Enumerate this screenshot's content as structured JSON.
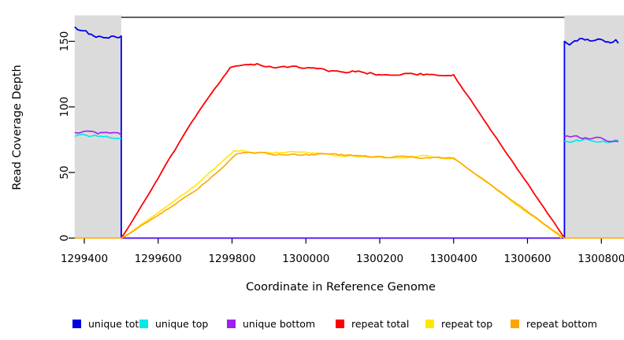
{
  "chart_data": {
    "type": "line",
    "title": "",
    "xlabel": "Coordinate in Reference Genome",
    "ylabel": "Read Coverage Depth",
    "xlim": [
      1299374,
      1300862
    ],
    "ylim": [
      0,
      168
    ],
    "x_ticks": [
      1299400,
      1299600,
      1299800,
      1300000,
      1300200,
      1300400,
      1300600,
      1300800
    ],
    "y_ticks": [
      0,
      50,
      100,
      150
    ],
    "grid": false,
    "legend_position": "bottom",
    "shaded_regions": [
      {
        "name": "left-flank",
        "x0": 1299374,
        "x1": 1299500,
        "color": "#DBDBDB"
      },
      {
        "name": "right-flank",
        "x0": 1300700,
        "x1": 1300862,
        "color": "#DBDBDB"
      }
    ],
    "top_border": {
      "x0": 1299500,
      "x1": 1300700,
      "color": "#000000"
    },
    "series": [
      {
        "name": "unique total",
        "color": "#0000EE",
        "lw": 1.8,
        "paths": [
          {
            "segments": [
              {
                "x0": 1299374,
                "y0": 161,
                "x1": 1299412,
                "y1": 155.5,
                "amp": 1.5,
                "step": 7
              },
              {
                "x0": 1299412,
                "y0": 155.5,
                "x1": 1299500,
                "y1": 154,
                "amp": 2.1,
                "step": 7
              },
              {
                "x0": 1299500,
                "y0": 154,
                "x1": 1299500,
                "y1": 0,
                "amp": 0
              },
              {
                "x0": 1299500,
                "y0": 0,
                "x1": 1300700,
                "y1": 0,
                "amp": 0
              },
              {
                "x0": 1300700,
                "y0": 0,
                "x1": 1300700,
                "y1": 150,
                "amp": 0
              },
              {
                "x0": 1300700,
                "y0": 150,
                "x1": 1300846,
                "y1": 148.5,
                "amp": 2.6,
                "step": 7
              }
            ]
          }
        ]
      },
      {
        "name": "unique top",
        "color": "#00E8E8",
        "lw": 1.6,
        "paths": [
          {
            "segments": [
              {
                "x0": 1299374,
                "y0": 77.5,
                "x1": 1299500,
                "y1": 76,
                "amp": 1.6,
                "step": 8
              }
            ]
          },
          {
            "segments": [
              {
                "x0": 1300700,
                "y0": 74,
                "x1": 1300846,
                "y1": 74.5,
                "amp": 1.6,
                "step": 8
              }
            ]
          }
        ]
      },
      {
        "name": "unique bottom",
        "color": "#A020F0",
        "lw": 1.6,
        "paths": [
          {
            "segments": [
              {
                "x0": 1299374,
                "y0": 80.5,
                "x1": 1299500,
                "y1": 78.5,
                "amp": 1.6,
                "step": 8
              }
            ]
          },
          {
            "op": 0.55,
            "segments": [
              {
                "x0": 1299500,
                "y0": 0,
                "x1": 1300700,
                "y1": 0,
                "amp": 0
              }
            ]
          },
          {
            "segments": [
              {
                "x0": 1300700,
                "y0": 77.5,
                "x1": 1300846,
                "y1": 73.5,
                "amp": 1.8,
                "step": 8
              }
            ]
          }
        ]
      },
      {
        "name": "repeat total",
        "color": "#FF0000",
        "lw": 1.8,
        "paths": [
          {
            "segments": [
              {
                "x0": 1299500,
                "y0": 0,
                "x1": 1299700,
                "y1": 92,
                "amp": 0.7,
                "step": 9
              },
              {
                "x0": 1299700,
                "y0": 92,
                "x1": 1299795,
                "y1": 130,
                "amp": 0.7,
                "step": 9
              },
              {
                "x0": 1299795,
                "y0": 130,
                "x1": 1299860,
                "y1": 132,
                "amp": 1,
                "step": 8
              },
              {
                "x0": 1299860,
                "y0": 132,
                "x1": 1299990,
                "y1": 129.5,
                "amp": 1.2,
                "step": 8
              },
              {
                "x0": 1299990,
                "y0": 129.5,
                "x1": 1300110,
                "y1": 126,
                "amp": 1.2,
                "step": 8
              },
              {
                "x0": 1300110,
                "y0": 126,
                "x1": 1300310,
                "y1": 125.5,
                "amp": 1.5,
                "step": 8
              },
              {
                "x0": 1300310,
                "y0": 125.5,
                "x1": 1300400,
                "y1": 124.5,
                "amp": 1,
                "step": 8
              },
              {
                "x0": 1300400,
                "y0": 124.5,
                "x1": 1300700,
                "y1": 0,
                "amp": 0.5,
                "step": 9
              }
            ]
          }
        ]
      },
      {
        "name": "repeat top",
        "color": "#FFE800",
        "lw": 1.6,
        "paths": [
          {
            "segments": [
              {
                "x0": 1299500,
                "y0": 0,
                "x1": 1299690,
                "y1": 38,
                "amp": 0.6,
                "step": 9
              },
              {
                "x0": 1299690,
                "y0": 38,
                "x1": 1299805,
                "y1": 66.5,
                "amp": 0.7,
                "step": 9
              },
              {
                "x0": 1299805,
                "y0": 66.5,
                "x1": 1299920,
                "y1": 65.5,
                "amp": 1,
                "step": 8
              },
              {
                "x0": 1299920,
                "y0": 65.5,
                "x1": 1300120,
                "y1": 63,
                "amp": 1,
                "step": 8
              },
              {
                "x0": 1300120,
                "y0": 63,
                "x1": 1300400,
                "y1": 61.5,
                "amp": 1.1,
                "step": 8
              },
              {
                "x0": 1300400,
                "y0": 61.5,
                "x1": 1300692,
                "y1": 0,
                "amp": 0.5,
                "step": 9
              }
            ]
          }
        ]
      },
      {
        "name": "repeat bottom",
        "color": "#FFA500",
        "lw": 1.6,
        "paths": [
          {
            "segments": [
              {
                "x0": 1299374,
                "y0": 0,
                "x1": 1299500,
                "y1": 0,
                "amp": 0
              },
              {
                "x0": 1299500,
                "y0": 0,
                "x1": 1299700,
                "y1": 36,
                "amp": 0.6,
                "step": 9
              },
              {
                "x0": 1299700,
                "y0": 36,
                "x1": 1299815,
                "y1": 64.5,
                "amp": 0.7,
                "step": 9
              },
              {
                "x0": 1299815,
                "y0": 64.5,
                "x1": 1300000,
                "y1": 64,
                "amp": 1,
                "step": 8
              },
              {
                "x0": 1300000,
                "y0": 64,
                "x1": 1300200,
                "y1": 62,
                "amp": 1,
                "step": 8
              },
              {
                "x0": 1300200,
                "y0": 62,
                "x1": 1300400,
                "y1": 60.5,
                "amp": 1,
                "step": 8
              },
              {
                "x0": 1300400,
                "y0": 60.5,
                "x1": 1300700,
                "y1": 0,
                "amp": 0.5,
                "step": 9
              },
              {
                "x0": 1300700,
                "y0": 0,
                "x1": 1300862,
                "y1": 0,
                "amp": 0
              }
            ]
          }
        ]
      }
    ]
  },
  "legend": {
    "items": [
      {
        "label": "unique total",
        "color": "#0000E0"
      },
      {
        "label": "unique top",
        "color": "#00E8E8"
      },
      {
        "label": "unique bottom",
        "color": "#A020F0"
      },
      {
        "label": "repeat total",
        "color": "#FF0000"
      },
      {
        "label": "repeat top",
        "color": "#FFE800"
      },
      {
        "label": "repeat bottom",
        "color": "#FFA500"
      }
    ]
  }
}
